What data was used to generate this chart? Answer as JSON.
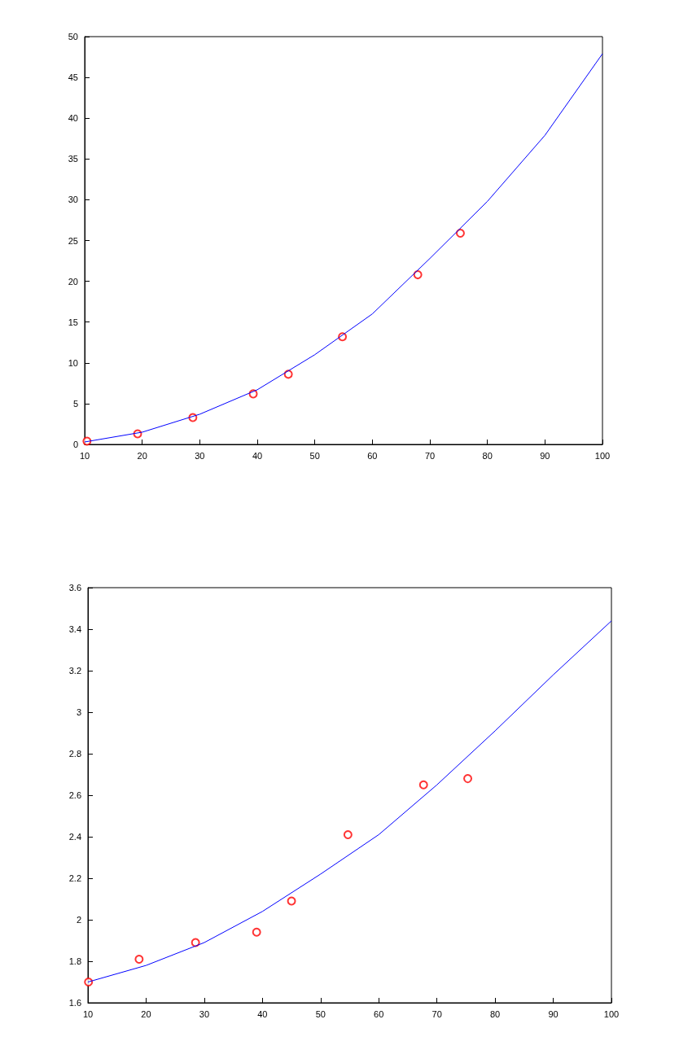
{
  "chart_data": [
    {
      "type": "scatter",
      "xlim": [
        10,
        100
      ],
      "xticks": [
        10,
        20,
        30,
        40,
        50,
        60,
        70,
        80,
        90,
        100
      ],
      "ylim": [
        0,
        50
      ],
      "yticks": [
        0,
        5,
        10,
        15,
        20,
        25,
        30,
        35,
        40,
        45,
        50
      ],
      "series": [
        {
          "type": "scatter",
          "marker": "circle",
          "color": "#ff0000",
          "x": [
            10.4,
            19.2,
            28.8,
            39.3,
            45.4,
            54.8,
            67.9,
            75.3
          ],
          "values": [
            0.4,
            1.3,
            3.3,
            6.2,
            8.6,
            13.2,
            20.8,
            25.9
          ]
        },
        {
          "type": "line",
          "marker": "none",
          "color": "#0000ff",
          "x": [
            10,
            20,
            30,
            40,
            50,
            60,
            70,
            80,
            90,
            100
          ],
          "values": [
            0.3,
            1.5,
            3.7,
            6.7,
            11.0,
            16.0,
            22.8,
            29.8,
            37.9,
            47.9
          ]
        }
      ]
    },
    {
      "type": "scatter",
      "xlim": [
        10,
        100
      ],
      "xticks": [
        10,
        20,
        30,
        40,
        50,
        60,
        70,
        80,
        90,
        100
      ],
      "ylim": [
        1.6,
        3.6
      ],
      "yticks": [
        1.6,
        1.8,
        2,
        2.2,
        2.4,
        2.6,
        2.8,
        3,
        3.2,
        3.4,
        3.6
      ],
      "series": [
        {
          "type": "scatter",
          "marker": "circle",
          "color": "#ff0000",
          "x": [
            10.1,
            18.8,
            28.5,
            39.0,
            45.0,
            54.7,
            67.7,
            75.3
          ],
          "values": [
            1.7,
            1.81,
            1.89,
            1.94,
            2.09,
            2.41,
            2.65,
            2.68
          ]
        },
        {
          "type": "line",
          "marker": "none",
          "color": "#0000ff",
          "x": [
            10,
            20,
            30,
            40,
            50,
            60,
            70,
            80,
            90,
            100
          ],
          "values": [
            1.7,
            1.78,
            1.89,
            2.04,
            2.22,
            2.41,
            2.65,
            2.91,
            3.18,
            3.44
          ]
        }
      ]
    }
  ]
}
